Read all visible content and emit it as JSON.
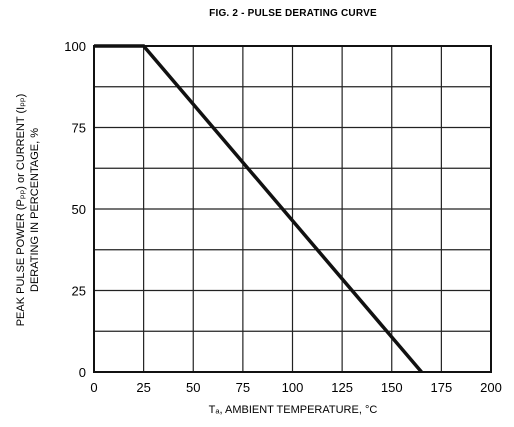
{
  "chart_data": {
    "type": "line",
    "title": "FIG. 2 - PULSE DERATING CURVE",
    "xlabel": "Tₐ, AMBIENT TEMPERATURE, °C",
    "ylabel_line1": "PEAK PULSE POWER (Pₚₚ) or CURRENT (Iₚₚ)",
    "ylabel_line2": "DERATING IN PERCENTAGE, %",
    "xlim": [
      0,
      200
    ],
    "ylim": [
      0,
      100
    ],
    "x_ticks": [
      0,
      25,
      50,
      75,
      100,
      125,
      150,
      175,
      200
    ],
    "y_ticks": [
      0,
      25,
      50,
      75,
      100
    ],
    "grid": true,
    "series": [
      {
        "x": [
          0,
          25,
          165
        ],
        "y": [
          100,
          100,
          0
        ]
      }
    ]
  }
}
